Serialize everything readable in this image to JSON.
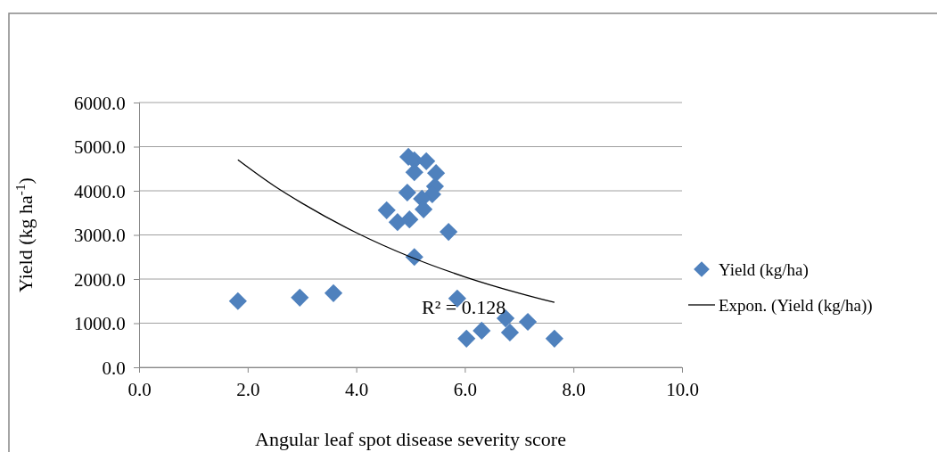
{
  "chart_data": {
    "type": "scatter",
    "xlabel": "Angular leaf spot disease severity score",
    "ylabel": "Yield (kg ha$^{-1}$)",
    "xlim": [
      0,
      10
    ],
    "xticks": [
      {
        "value": 0,
        "label": "0.0"
      },
      {
        "value": 2,
        "label": "2.0"
      },
      {
        "value": 4,
        "label": "4.0"
      },
      {
        "value": 6,
        "label": "6.0"
      },
      {
        "value": 8,
        "label": "8.0"
      },
      {
        "value": 10,
        "label": "10.0"
      }
    ],
    "ylim": [
      0,
      6000
    ],
    "yticks": [
      {
        "value": 0,
        "label": "0.0"
      },
      {
        "value": 1000,
        "label": "1000.0"
      },
      {
        "value": 2000,
        "label": "2000.0"
      },
      {
        "value": 3000,
        "label": "3000.0"
      },
      {
        "value": 4000,
        "label": "4000.0"
      },
      {
        "value": 5000,
        "label": "5000.0"
      },
      {
        "value": 6000,
        "label": "6000.0"
      }
    ],
    "grid": "y",
    "legend": "right",
    "marker": "diamond",
    "series": [
      {
        "name": "Yield (kg/ha)",
        "color": "#4f81bd",
        "x": [
          1.82,
          2.96,
          3.58,
          4.96,
          5.07,
          5.29,
          5.07,
          5.47,
          4.94,
          5.45,
          5.4,
          5.21,
          5.24,
          4.56,
          4.76,
          4.98,
          5.7,
          5.07,
          5.86,
          6.03,
          6.31,
          6.75,
          6.83,
          7.16,
          7.65
        ],
        "values": [
          1500,
          1580,
          1680,
          4770,
          4690,
          4670,
          4420,
          4400,
          3960,
          4100,
          3920,
          3820,
          3580,
          3560,
          3290,
          3350,
          3070,
          2500,
          1560,
          650,
          830,
          1110,
          790,
          1030,
          650
        ]
      },
      {
        "name": "Expon. (Yield (kg/ha))",
        "type": "line",
        "color": "#000000",
        "marker": "none",
        "x": [
          1.82,
          2.5,
          3,
          4,
          5,
          6,
          7,
          7.65
        ],
        "values": [
          4700,
          4100,
          3720,
          3050,
          2500,
          2050,
          1680,
          1470
        ]
      }
    ],
    "annotations": [
      "R² = 0.128"
    ]
  }
}
